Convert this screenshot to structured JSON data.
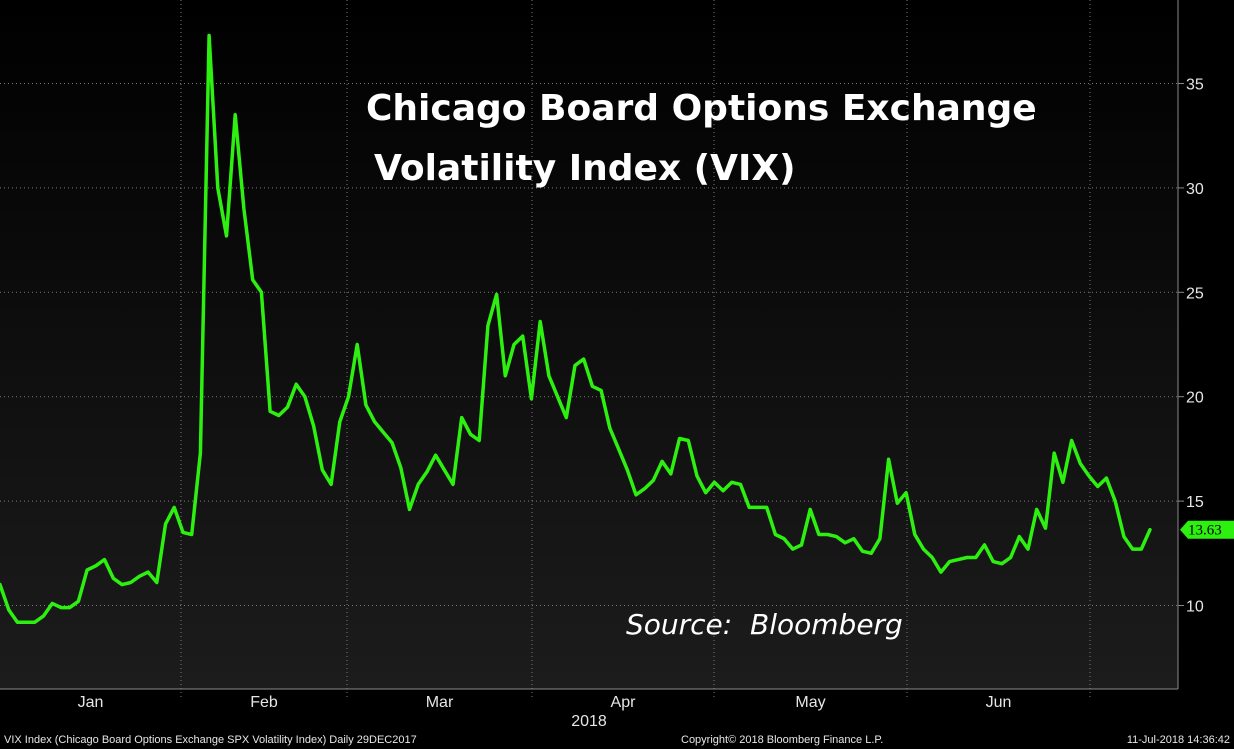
{
  "chart_data": {
    "type": "line",
    "title_lines": [
      "Chicago Board Options Exchange",
      "Volatility Index (VIX)"
    ],
    "annotation": "Source:  Bloomberg",
    "year_label": "2018",
    "ylim": [
      6,
      39
    ],
    "y_ticks": [
      10,
      15,
      20,
      25,
      30,
      35
    ],
    "months": [
      "Jan",
      "Feb",
      "Mar",
      "Apr",
      "May",
      "Jun"
    ],
    "series": [
      {
        "name": "VIX Index",
        "color": "#2df011",
        "last_value_label": "13.63",
        "values": [
          11.0,
          9.8,
          9.2,
          9.2,
          9.2,
          9.5,
          10.1,
          9.9,
          9.9,
          10.2,
          11.7,
          11.9,
          12.2,
          11.3,
          11.0,
          11.1,
          11.4,
          11.6,
          11.1,
          13.9,
          14.7,
          13.5,
          13.4,
          17.3,
          37.3,
          30.0,
          27.7,
          33.5,
          29.0,
          25.6,
          25.0,
          19.3,
          19.1,
          19.5,
          20.6,
          20.0,
          18.6,
          16.5,
          15.8,
          18.8,
          20.0,
          22.5,
          19.6,
          18.8,
          18.3,
          17.8,
          16.6,
          14.6,
          15.8,
          16.4,
          17.2,
          16.5,
          15.8,
          19.0,
          18.2,
          17.9,
          23.4,
          24.9,
          21.0,
          22.5,
          22.9,
          19.9,
          23.6,
          21.0,
          20.0,
          19.0,
          21.5,
          21.8,
          20.5,
          20.3,
          18.5,
          17.5,
          16.5,
          15.3,
          15.6,
          16.0,
          16.9,
          16.3,
          18.0,
          17.9,
          16.2,
          15.4,
          15.9,
          15.5,
          15.9,
          15.8,
          14.7,
          14.7,
          14.7,
          13.4,
          13.2,
          12.7,
          12.9,
          14.6,
          13.4,
          13.4,
          13.3,
          13.0,
          13.2,
          12.6,
          12.5,
          13.2,
          17.0,
          14.9,
          15.4,
          13.4,
          12.7,
          12.3,
          11.6,
          12.1,
          12.2,
          12.3,
          12.3,
          12.9,
          12.1,
          12.0,
          12.3,
          13.3,
          12.7,
          14.6,
          13.7,
          17.3,
          15.9,
          17.9,
          16.8,
          16.2,
          15.7,
          16.1,
          15.0,
          13.3,
          12.7,
          12.7,
          13.63
        ]
      }
    ]
  },
  "footer": {
    "left": "VIX Index (Chicago Board Options Exchange SPX Volatility Index)  Daily 29DEC2017",
    "center": "Copyright© 2018 Bloomberg Finance L.P.",
    "right": "11-Jul-2018 14:36:42"
  },
  "colors": {
    "line": "#2df011",
    "background_top": "#000000",
    "background_bottom": "#1c1c1c",
    "grid": "#7a7a7a"
  }
}
